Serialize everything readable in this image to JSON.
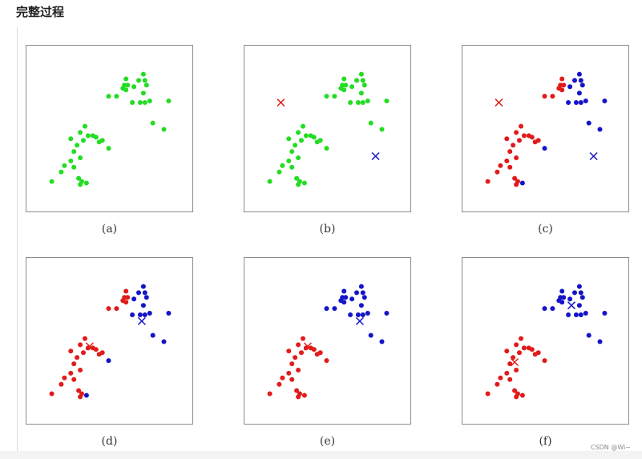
{
  "title": "完整过程",
  "watermark": "CSDN @Wi~",
  "colors": {
    "green": "#22dd22",
    "red": "#e11b1b",
    "blue": "#1414c8"
  },
  "chart_data": [
    {
      "type": "scatter",
      "caption": "(a)",
      "xlim": [
        0,
        1
      ],
      "ylim": [
        0,
        1
      ],
      "points": [
        [
          0.13,
          0.17,
          "g"
        ],
        [
          0.19,
          0.23,
          "g"
        ],
        [
          0.21,
          0.27,
          "g"
        ],
        [
          0.25,
          0.3,
          "g"
        ],
        [
          0.27,
          0.36,
          "g"
        ],
        [
          0.27,
          0.26,
          "g"
        ],
        [
          0.31,
          0.32,
          "g"
        ],
        [
          0.29,
          0.4,
          "g"
        ],
        [
          0.25,
          0.44,
          "g"
        ],
        [
          0.33,
          0.43,
          "g"
        ],
        [
          0.36,
          0.46,
          "g"
        ],
        [
          0.31,
          0.48,
          "g"
        ],
        [
          0.34,
          0.52,
          "g"
        ],
        [
          0.39,
          0.46,
          "g"
        ],
        [
          0.43,
          0.42,
          "g"
        ],
        [
          0.41,
          0.45,
          "g"
        ],
        [
          0.45,
          0.43,
          "g"
        ],
        [
          0.49,
          0.38,
          "g"
        ],
        [
          0.3,
          0.19,
          "g"
        ],
        [
          0.32,
          0.17,
          "g"
        ],
        [
          0.31,
          0.15,
          "g"
        ],
        [
          0.35,
          0.16,
          "g"
        ],
        [
          0.49,
          0.71,
          "g"
        ],
        [
          0.54,
          0.71,
          "g"
        ],
        [
          0.58,
          0.76,
          "g"
        ],
        [
          0.59,
          0.78,
          "g"
        ],
        [
          0.6,
          0.75,
          "g"
        ],
        [
          0.61,
          0.78,
          "g"
        ],
        [
          0.6,
          0.82,
          "g"
        ],
        [
          0.65,
          0.77,
          "g"
        ],
        [
          0.68,
          0.81,
          "g"
        ],
        [
          0.72,
          0.81,
          "g"
        ],
        [
          0.73,
          0.78,
          "g"
        ],
        [
          0.71,
          0.73,
          "g"
        ],
        [
          0.69,
          0.67,
          "g"
        ],
        [
          0.64,
          0.67,
          "g"
        ],
        [
          0.72,
          0.67,
          "g"
        ],
        [
          0.71,
          0.85,
          "g"
        ],
        [
          0.75,
          0.68,
          "g"
        ],
        [
          0.77,
          0.54,
          "g"
        ],
        [
          0.84,
          0.5,
          "g"
        ],
        [
          0.87,
          0.68,
          "g"
        ]
      ],
      "centroids": []
    },
    {
      "type": "scatter",
      "caption": "(b)",
      "xlim": [
        0,
        1
      ],
      "ylim": [
        0,
        1
      ],
      "points": [
        [
          0.13,
          0.17,
          "g"
        ],
        [
          0.19,
          0.23,
          "g"
        ],
        [
          0.21,
          0.27,
          "g"
        ],
        [
          0.25,
          0.3,
          "g"
        ],
        [
          0.27,
          0.36,
          "g"
        ],
        [
          0.27,
          0.26,
          "g"
        ],
        [
          0.31,
          0.32,
          "g"
        ],
        [
          0.29,
          0.4,
          "g"
        ],
        [
          0.25,
          0.44,
          "g"
        ],
        [
          0.33,
          0.43,
          "g"
        ],
        [
          0.36,
          0.46,
          "g"
        ],
        [
          0.31,
          0.48,
          "g"
        ],
        [
          0.34,
          0.52,
          "g"
        ],
        [
          0.39,
          0.46,
          "g"
        ],
        [
          0.43,
          0.42,
          "g"
        ],
        [
          0.41,
          0.45,
          "g"
        ],
        [
          0.45,
          0.43,
          "g"
        ],
        [
          0.49,
          0.38,
          "g"
        ],
        [
          0.3,
          0.19,
          "g"
        ],
        [
          0.32,
          0.17,
          "g"
        ],
        [
          0.31,
          0.15,
          "g"
        ],
        [
          0.35,
          0.16,
          "g"
        ],
        [
          0.49,
          0.71,
          "g"
        ],
        [
          0.54,
          0.71,
          "g"
        ],
        [
          0.58,
          0.76,
          "g"
        ],
        [
          0.59,
          0.78,
          "g"
        ],
        [
          0.6,
          0.75,
          "g"
        ],
        [
          0.61,
          0.78,
          "g"
        ],
        [
          0.6,
          0.82,
          "g"
        ],
        [
          0.65,
          0.77,
          "g"
        ],
        [
          0.68,
          0.81,
          "g"
        ],
        [
          0.72,
          0.81,
          "g"
        ],
        [
          0.73,
          0.78,
          "g"
        ],
        [
          0.71,
          0.73,
          "g"
        ],
        [
          0.69,
          0.67,
          "g"
        ],
        [
          0.64,
          0.67,
          "g"
        ],
        [
          0.72,
          0.67,
          "g"
        ],
        [
          0.71,
          0.85,
          "g"
        ],
        [
          0.75,
          0.68,
          "g"
        ],
        [
          0.77,
          0.54,
          "g"
        ],
        [
          0.84,
          0.5,
          "g"
        ],
        [
          0.87,
          0.68,
          "g"
        ]
      ],
      "centroids": [
        [
          0.2,
          0.67,
          "r"
        ],
        [
          0.8,
          0.33,
          "b"
        ]
      ]
    },
    {
      "type": "scatter",
      "caption": "(c)",
      "xlim": [
        0,
        1
      ],
      "ylim": [
        0,
        1
      ],
      "points": [
        [
          0.13,
          0.17,
          "r"
        ],
        [
          0.19,
          0.23,
          "r"
        ],
        [
          0.21,
          0.27,
          "r"
        ],
        [
          0.25,
          0.3,
          "r"
        ],
        [
          0.27,
          0.36,
          "r"
        ],
        [
          0.27,
          0.26,
          "r"
        ],
        [
          0.31,
          0.32,
          "r"
        ],
        [
          0.29,
          0.4,
          "r"
        ],
        [
          0.25,
          0.44,
          "r"
        ],
        [
          0.33,
          0.43,
          "r"
        ],
        [
          0.36,
          0.46,
          "r"
        ],
        [
          0.31,
          0.48,
          "r"
        ],
        [
          0.34,
          0.52,
          "r"
        ],
        [
          0.39,
          0.46,
          "r"
        ],
        [
          0.43,
          0.42,
          "r"
        ],
        [
          0.41,
          0.45,
          "r"
        ],
        [
          0.45,
          0.43,
          "r"
        ],
        [
          0.49,
          0.38,
          "b"
        ],
        [
          0.3,
          0.19,
          "r"
        ],
        [
          0.32,
          0.17,
          "r"
        ],
        [
          0.31,
          0.15,
          "r"
        ],
        [
          0.35,
          0.16,
          "b"
        ],
        [
          0.49,
          0.71,
          "r"
        ],
        [
          0.54,
          0.71,
          "r"
        ],
        [
          0.58,
          0.76,
          "r"
        ],
        [
          0.59,
          0.78,
          "r"
        ],
        [
          0.6,
          0.75,
          "r"
        ],
        [
          0.61,
          0.78,
          "r"
        ],
        [
          0.6,
          0.82,
          "r"
        ],
        [
          0.65,
          0.77,
          "b"
        ],
        [
          0.68,
          0.81,
          "b"
        ],
        [
          0.72,
          0.81,
          "b"
        ],
        [
          0.73,
          0.78,
          "b"
        ],
        [
          0.71,
          0.73,
          "b"
        ],
        [
          0.69,
          0.67,
          "b"
        ],
        [
          0.64,
          0.67,
          "b"
        ],
        [
          0.72,
          0.67,
          "b"
        ],
        [
          0.71,
          0.85,
          "b"
        ],
        [
          0.75,
          0.68,
          "b"
        ],
        [
          0.77,
          0.54,
          "b"
        ],
        [
          0.84,
          0.5,
          "b"
        ],
        [
          0.87,
          0.68,
          "b"
        ]
      ],
      "centroids": [
        [
          0.2,
          0.67,
          "r"
        ],
        [
          0.8,
          0.33,
          "b"
        ]
      ]
    },
    {
      "type": "scatter",
      "caption": "(d)",
      "xlim": [
        0,
        1
      ],
      "ylim": [
        0,
        1
      ],
      "points": [
        [
          0.13,
          0.17,
          "r"
        ],
        [
          0.19,
          0.23,
          "r"
        ],
        [
          0.21,
          0.27,
          "r"
        ],
        [
          0.25,
          0.3,
          "r"
        ],
        [
          0.27,
          0.36,
          "r"
        ],
        [
          0.27,
          0.26,
          "r"
        ],
        [
          0.31,
          0.32,
          "r"
        ],
        [
          0.29,
          0.4,
          "r"
        ],
        [
          0.25,
          0.44,
          "r"
        ],
        [
          0.33,
          0.43,
          "r"
        ],
        [
          0.36,
          0.46,
          "r"
        ],
        [
          0.31,
          0.48,
          "r"
        ],
        [
          0.34,
          0.52,
          "r"
        ],
        [
          0.39,
          0.46,
          "r"
        ],
        [
          0.43,
          0.42,
          "r"
        ],
        [
          0.41,
          0.45,
          "r"
        ],
        [
          0.45,
          0.43,
          "r"
        ],
        [
          0.49,
          0.38,
          "b"
        ],
        [
          0.3,
          0.19,
          "r"
        ],
        [
          0.32,
          0.17,
          "r"
        ],
        [
          0.31,
          0.15,
          "r"
        ],
        [
          0.35,
          0.16,
          "b"
        ],
        [
          0.49,
          0.71,
          "r"
        ],
        [
          0.54,
          0.71,
          "r"
        ],
        [
          0.58,
          0.76,
          "r"
        ],
        [
          0.59,
          0.78,
          "r"
        ],
        [
          0.6,
          0.75,
          "r"
        ],
        [
          0.61,
          0.78,
          "r"
        ],
        [
          0.6,
          0.82,
          "r"
        ],
        [
          0.65,
          0.77,
          "b"
        ],
        [
          0.68,
          0.81,
          "b"
        ],
        [
          0.72,
          0.81,
          "b"
        ],
        [
          0.73,
          0.78,
          "b"
        ],
        [
          0.71,
          0.73,
          "b"
        ],
        [
          0.69,
          0.67,
          "b"
        ],
        [
          0.64,
          0.67,
          "b"
        ],
        [
          0.72,
          0.67,
          "b"
        ],
        [
          0.71,
          0.85,
          "b"
        ],
        [
          0.75,
          0.68,
          "b"
        ],
        [
          0.77,
          0.54,
          "b"
        ],
        [
          0.84,
          0.5,
          "b"
        ],
        [
          0.87,
          0.68,
          "b"
        ]
      ],
      "centroids": [
        [
          0.37,
          0.47,
          "r"
        ],
        [
          0.7,
          0.63,
          "b"
        ]
      ]
    },
    {
      "type": "scatter",
      "caption": "(e)",
      "xlim": [
        0,
        1
      ],
      "ylim": [
        0,
        1
      ],
      "points": [
        [
          0.13,
          0.17,
          "r"
        ],
        [
          0.19,
          0.23,
          "r"
        ],
        [
          0.21,
          0.27,
          "r"
        ],
        [
          0.25,
          0.3,
          "r"
        ],
        [
          0.27,
          0.36,
          "r"
        ],
        [
          0.27,
          0.26,
          "r"
        ],
        [
          0.31,
          0.32,
          "r"
        ],
        [
          0.29,
          0.4,
          "r"
        ],
        [
          0.25,
          0.44,
          "r"
        ],
        [
          0.33,
          0.43,
          "r"
        ],
        [
          0.36,
          0.46,
          "r"
        ],
        [
          0.31,
          0.48,
          "r"
        ],
        [
          0.34,
          0.52,
          "r"
        ],
        [
          0.39,
          0.46,
          "r"
        ],
        [
          0.43,
          0.42,
          "r"
        ],
        [
          0.41,
          0.45,
          "r"
        ],
        [
          0.45,
          0.43,
          "r"
        ],
        [
          0.49,
          0.38,
          "r"
        ],
        [
          0.3,
          0.19,
          "r"
        ],
        [
          0.32,
          0.17,
          "r"
        ],
        [
          0.31,
          0.15,
          "r"
        ],
        [
          0.35,
          0.16,
          "r"
        ],
        [
          0.49,
          0.71,
          "b"
        ],
        [
          0.54,
          0.71,
          "b"
        ],
        [
          0.58,
          0.76,
          "b"
        ],
        [
          0.59,
          0.78,
          "b"
        ],
        [
          0.6,
          0.75,
          "b"
        ],
        [
          0.61,
          0.78,
          "b"
        ],
        [
          0.6,
          0.82,
          "b"
        ],
        [
          0.65,
          0.77,
          "b"
        ],
        [
          0.68,
          0.81,
          "b"
        ],
        [
          0.72,
          0.81,
          "b"
        ],
        [
          0.73,
          0.78,
          "b"
        ],
        [
          0.71,
          0.73,
          "b"
        ],
        [
          0.69,
          0.67,
          "b"
        ],
        [
          0.64,
          0.67,
          "b"
        ],
        [
          0.72,
          0.67,
          "b"
        ],
        [
          0.71,
          0.85,
          "b"
        ],
        [
          0.75,
          0.68,
          "b"
        ],
        [
          0.77,
          0.54,
          "b"
        ],
        [
          0.84,
          0.5,
          "b"
        ],
        [
          0.87,
          0.68,
          "b"
        ]
      ],
      "centroids": [
        [
          0.37,
          0.47,
          "r"
        ],
        [
          0.7,
          0.63,
          "b"
        ]
      ]
    },
    {
      "type": "scatter",
      "caption": "(f)",
      "xlim": [
        0,
        1
      ],
      "ylim": [
        0,
        1
      ],
      "points": [
        [
          0.13,
          0.17,
          "r"
        ],
        [
          0.19,
          0.23,
          "r"
        ],
        [
          0.21,
          0.27,
          "r"
        ],
        [
          0.25,
          0.3,
          "r"
        ],
        [
          0.27,
          0.36,
          "r"
        ],
        [
          0.27,
          0.26,
          "r"
        ],
        [
          0.31,
          0.32,
          "r"
        ],
        [
          0.29,
          0.4,
          "r"
        ],
        [
          0.25,
          0.44,
          "r"
        ],
        [
          0.33,
          0.43,
          "r"
        ],
        [
          0.36,
          0.46,
          "r"
        ],
        [
          0.31,
          0.48,
          "r"
        ],
        [
          0.34,
          0.52,
          "r"
        ],
        [
          0.39,
          0.46,
          "r"
        ],
        [
          0.43,
          0.42,
          "r"
        ],
        [
          0.41,
          0.45,
          "r"
        ],
        [
          0.45,
          0.43,
          "r"
        ],
        [
          0.49,
          0.38,
          "r"
        ],
        [
          0.3,
          0.19,
          "r"
        ],
        [
          0.32,
          0.17,
          "r"
        ],
        [
          0.31,
          0.15,
          "r"
        ],
        [
          0.35,
          0.16,
          "r"
        ],
        [
          0.49,
          0.71,
          "b"
        ],
        [
          0.54,
          0.71,
          "b"
        ],
        [
          0.58,
          0.76,
          "b"
        ],
        [
          0.59,
          0.78,
          "b"
        ],
        [
          0.6,
          0.75,
          "b"
        ],
        [
          0.61,
          0.78,
          "b"
        ],
        [
          0.6,
          0.82,
          "b"
        ],
        [
          0.65,
          0.77,
          "b"
        ],
        [
          0.68,
          0.81,
          "b"
        ],
        [
          0.72,
          0.81,
          "b"
        ],
        [
          0.73,
          0.78,
          "b"
        ],
        [
          0.71,
          0.73,
          "b"
        ],
        [
          0.69,
          0.67,
          "b"
        ],
        [
          0.64,
          0.67,
          "b"
        ],
        [
          0.72,
          0.67,
          "b"
        ],
        [
          0.71,
          0.85,
          "b"
        ],
        [
          0.75,
          0.68,
          "b"
        ],
        [
          0.77,
          0.54,
          "b"
        ],
        [
          0.84,
          0.5,
          "b"
        ],
        [
          0.87,
          0.68,
          "b"
        ]
      ],
      "centroids": [
        [
          0.3,
          0.37,
          "r"
        ],
        [
          0.66,
          0.73,
          "b"
        ]
      ]
    }
  ]
}
